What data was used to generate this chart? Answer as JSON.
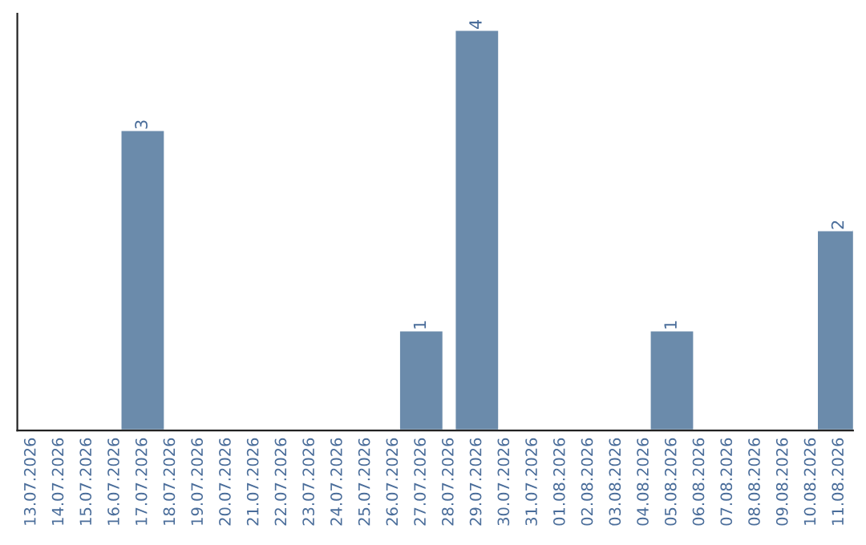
{
  "chart_data": {
    "type": "bar",
    "categories": [
      "13.07.2026",
      "14.07.2026",
      "15.07.2026",
      "16.07.2026",
      "17.07.2026",
      "18.07.2026",
      "19.07.2026",
      "20.07.2026",
      "21.07.2026",
      "22.07.2026",
      "23.07.2026",
      "24.07.2026",
      "25.07.2026",
      "26.07.2026",
      "27.07.2026",
      "28.07.2026",
      "29.07.2026",
      "30.07.2026",
      "31.07.2026",
      "01.08.2026",
      "02.08.2026",
      "03.08.2026",
      "04.08.2026",
      "05.08.2026",
      "06.08.2026",
      "07.08.2026",
      "08.08.2026",
      "09.08.2026",
      "10.08.2026",
      "11.08.2026"
    ],
    "values": [
      null,
      null,
      null,
      null,
      3,
      null,
      null,
      null,
      null,
      null,
      null,
      null,
      null,
      null,
      1,
      null,
      4,
      null,
      null,
      null,
      null,
      null,
      null,
      1,
      null,
      null,
      null,
      null,
      null,
      2
    ],
    "value_labels": [
      null,
      null,
      null,
      null,
      "3",
      null,
      null,
      null,
      null,
      null,
      null,
      null,
      null,
      null,
      "1",
      null,
      "4",
      null,
      null,
      null,
      null,
      null,
      null,
      "1",
      null,
      null,
      null,
      null,
      null,
      "2"
    ],
    "color": "#6b8bab",
    "tick_labels": "x",
    "grid": false
  }
}
